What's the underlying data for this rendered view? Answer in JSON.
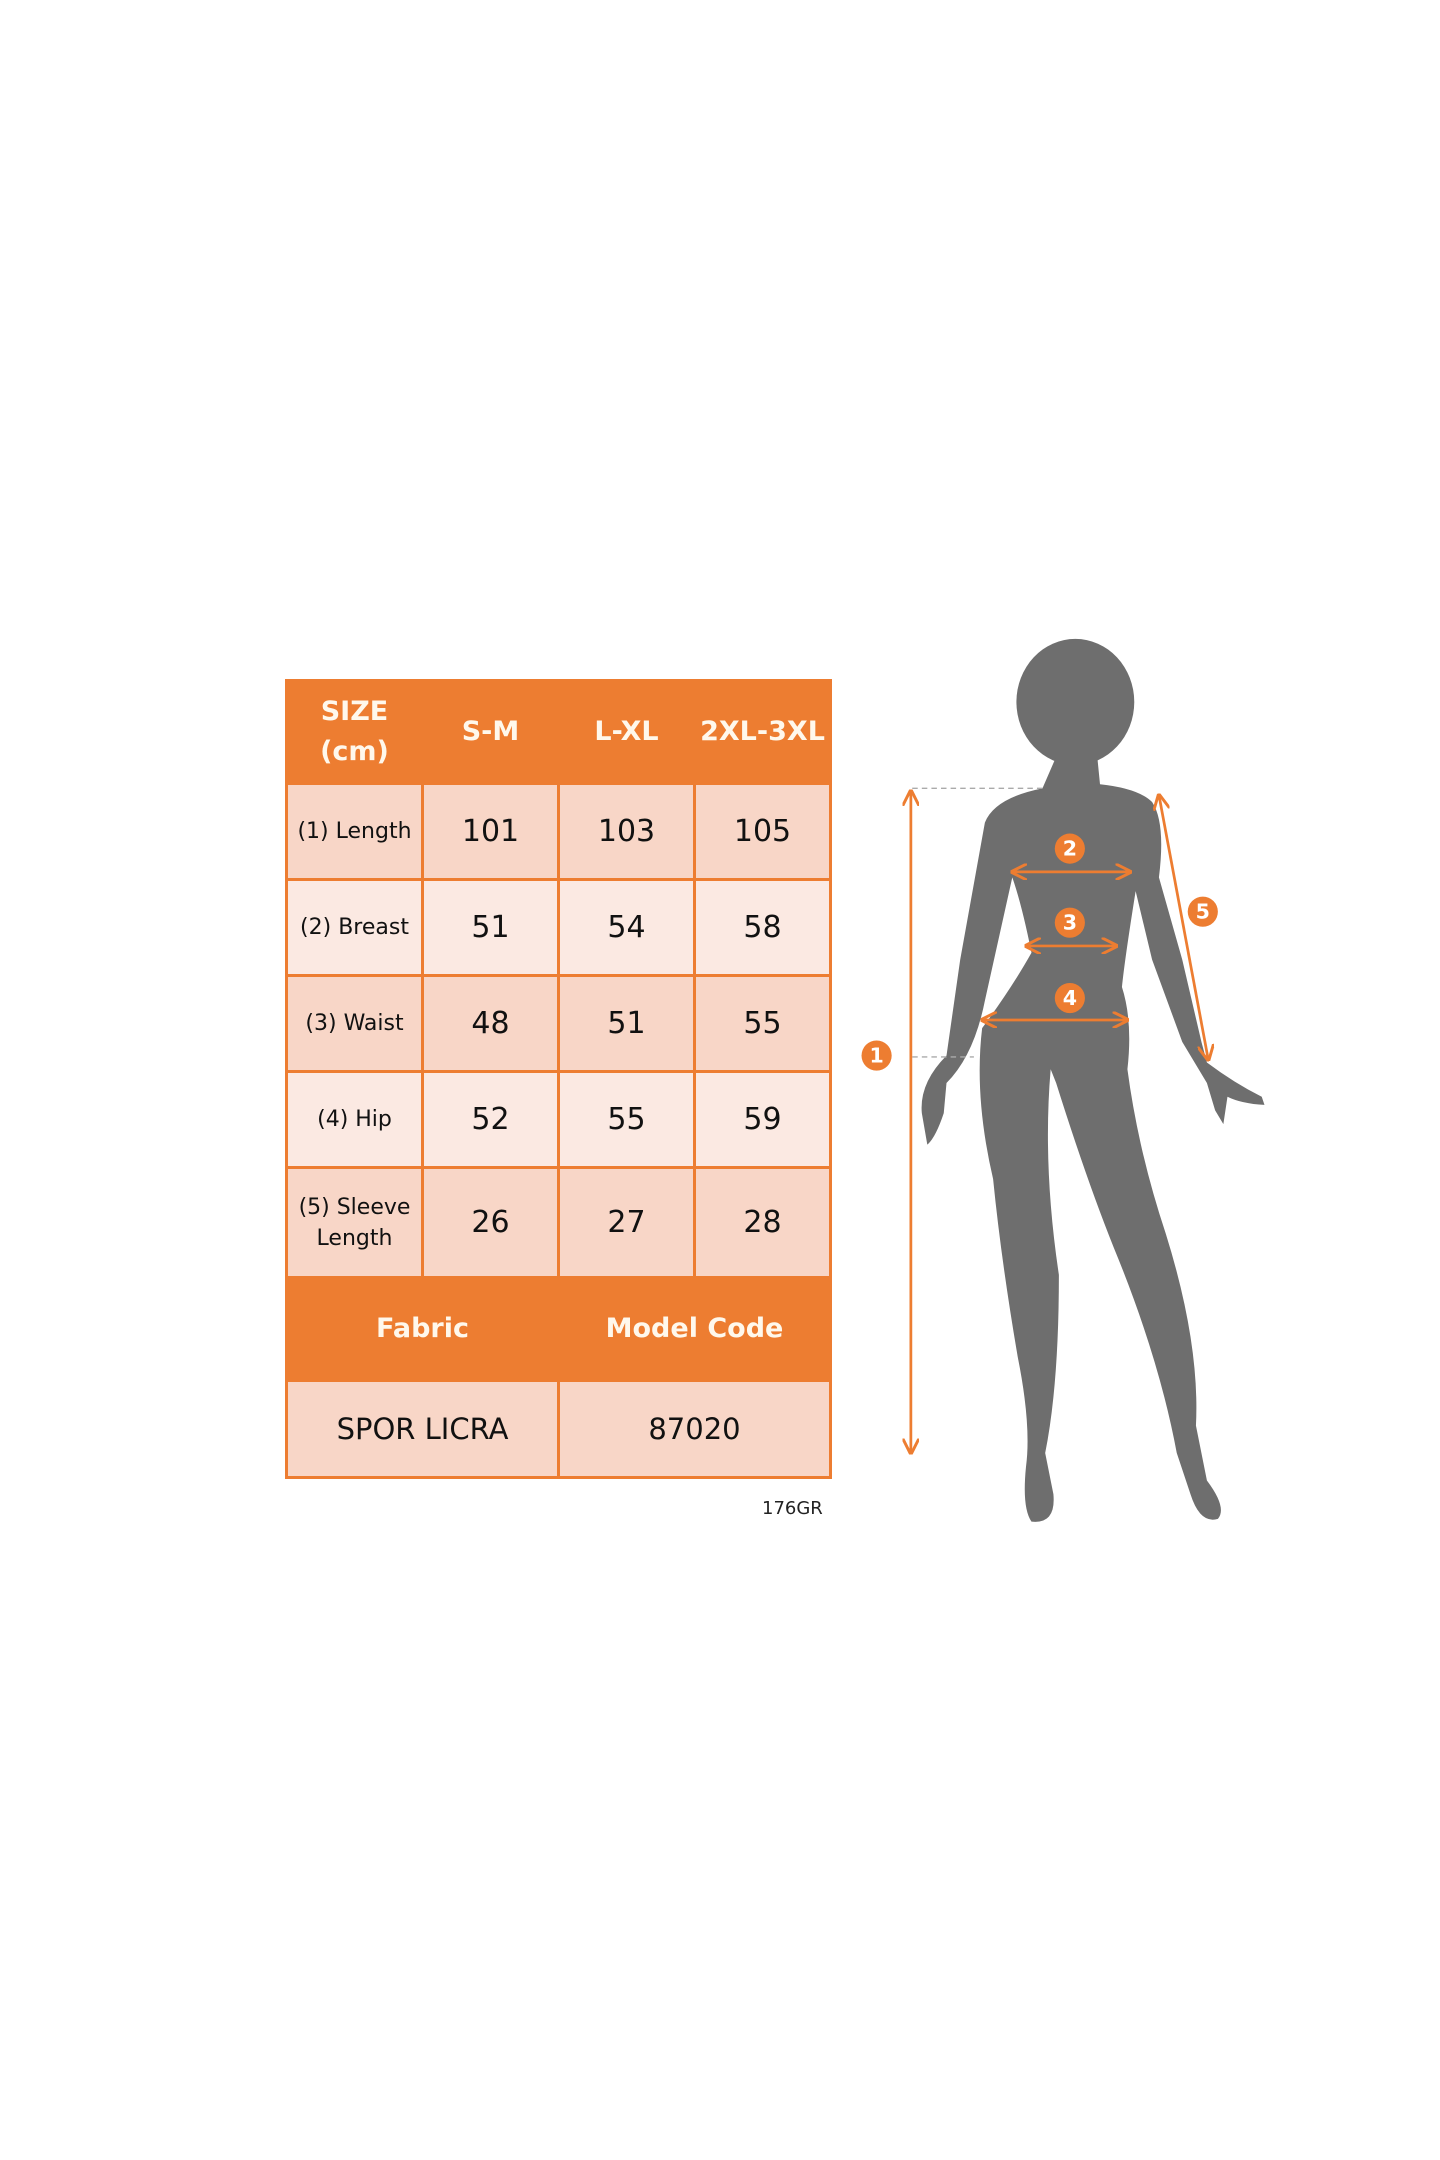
{
  "table": {
    "header": [
      "SIZE (cm)",
      "S-M",
      "L-XL",
      "2XL-3XL"
    ],
    "rows": [
      {
        "label": "(1) Length",
        "values": [
          "101",
          "103",
          "105"
        ]
      },
      {
        "label": "(2) Breast",
        "values": [
          "51",
          "54",
          "58"
        ]
      },
      {
        "label": "(3) Waist",
        "values": [
          "48",
          "51",
          "55"
        ]
      },
      {
        "label": "(4) Hip",
        "values": [
          "52",
          "55",
          "59"
        ]
      },
      {
        "label": "(5) Sleeve Length",
        "values": [
          "26",
          "27",
          "28"
        ]
      }
    ],
    "footer_header": [
      "Fabric",
      "Model Code"
    ],
    "footer_values": [
      "SPOR LICRA",
      "87020"
    ]
  },
  "weight_code": "176GR",
  "figure": {
    "markers": [
      "1",
      "2",
      "3",
      "4",
      "5"
    ]
  },
  "colors": {
    "accent": "#ED7D31",
    "row_dark": "#F8D6C7",
    "row_light": "#FBE9E2",
    "silhouette": "#6E6E6E"
  }
}
